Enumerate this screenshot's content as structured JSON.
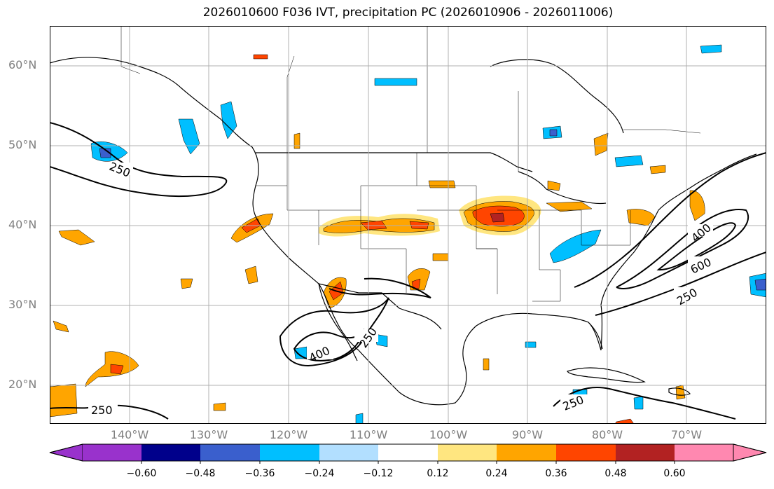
{
  "title": "2026010600 F036 IVT, precipitation PC (2026010906 - 2026011006)",
  "lat_labels": [
    "60°N",
    "50°N",
    "40°N",
    "30°N",
    "20°N"
  ],
  "lon_labels": [
    "140°W",
    "130°W",
    "120°W",
    "110°W",
    "100°W",
    "90°W",
    "80°W",
    "70°W"
  ],
  "ivt_contour_labels": [
    "250",
    "250",
    "400",
    "250",
    "250",
    "400",
    "600",
    "250"
  ],
  "colorbar": {
    "ticks": [
      "−0.60",
      "−0.48",
      "−0.36",
      "−0.24",
      "−0.12",
      "0.12",
      "0.24",
      "0.36",
      "0.48",
      "0.60"
    ],
    "colors": [
      "#9932cc",
      "#00008b",
      "#3a5fcd",
      "#00bfff",
      "#b2dfff",
      "#ffffff",
      "#ffe680",
      "#ffa500",
      "#ff4500",
      "#b22222",
      "#ff88b0"
    ]
  },
  "legend_colors": {
    "pos1": "#ffe680",
    "pos2": "#ffa500",
    "pos3": "#ff4500",
    "pos4": "#b22222",
    "neg1": "#b2dfff",
    "neg2": "#00bfff",
    "neg3": "#3a5fcd",
    "neg4": "#00008b"
  }
}
